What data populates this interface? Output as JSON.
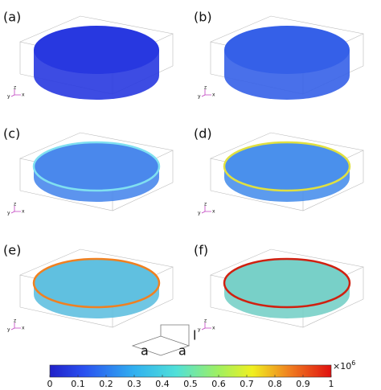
{
  "panels": [
    {
      "label": "(a)"
    },
    {
      "label": "(b)"
    },
    {
      "label": "(c)"
    },
    {
      "label": "(d)"
    },
    {
      "label": "(e)"
    },
    {
      "label": "(f)"
    }
  ],
  "axes_triad": [
    "y",
    "z",
    "x"
  ],
  "sketch": {
    "side_1": "a",
    "side_2": "a",
    "height": "l"
  },
  "colorbar": {
    "lim": [
      0,
      1
    ],
    "ticks": [
      0,
      0.1,
      0.2,
      0.3,
      0.4,
      0.5,
      0.6,
      0.7,
      0.8,
      0.9,
      1
    ],
    "multiplier": "×10",
    "exponent": "6"
  }
}
